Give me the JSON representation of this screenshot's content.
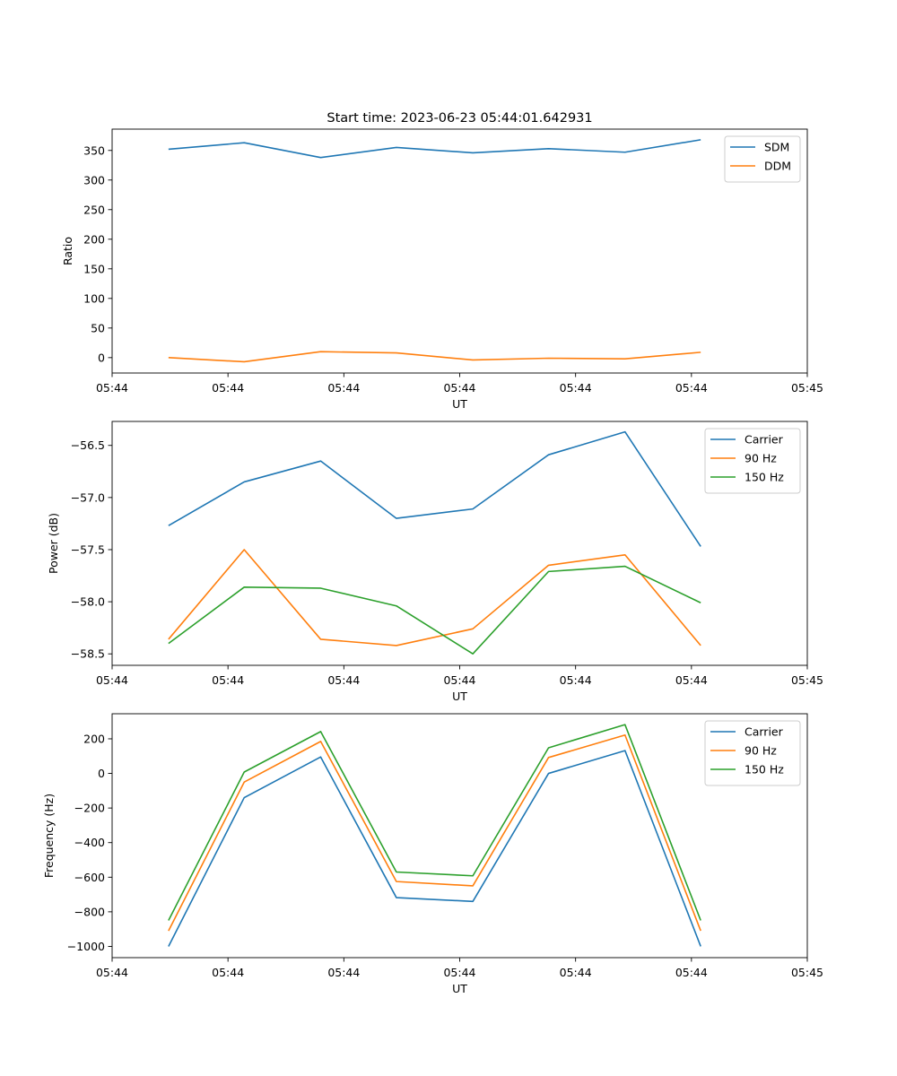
{
  "figure": {
    "title": "Start time: 2023-06-23 05:44:01.642931"
  },
  "chart_data": [
    {
      "type": "line",
      "xlabel": "UT",
      "ylabel": "Ratio",
      "xlim": [
        0,
        9
      ],
      "ylim": [
        -26,
        386
      ],
      "x_ticks": [
        {
          "value": 0,
          "label": "05:44"
        },
        {
          "value": 1.5,
          "label": "05:44"
        },
        {
          "value": 3,
          "label": "05:44"
        },
        {
          "value": 4.5,
          "label": "05:44"
        },
        {
          "value": 6,
          "label": "05:44"
        },
        {
          "value": 7.5,
          "label": "05:44"
        },
        {
          "value": 9,
          "label": "05:45"
        }
      ],
      "y_ticks": [
        {
          "value": 350,
          "label": "350"
        },
        {
          "value": 300,
          "label": "300"
        },
        {
          "value": 250,
          "label": "250"
        },
        {
          "value": 200,
          "label": "200"
        },
        {
          "value": 150,
          "label": "150"
        },
        {
          "value": 100,
          "label": "100"
        },
        {
          "value": 50,
          "label": "50"
        },
        {
          "value": 0,
          "label": "0"
        }
      ],
      "x": [
        0.73,
        1.71,
        2.7,
        3.68,
        4.67,
        5.65,
        6.64,
        7.62
      ],
      "series": [
        {
          "name": "SDM",
          "color": "#1f77b4",
          "values": [
            352,
            363,
            338,
            355,
            346,
            353,
            347,
            368
          ]
        },
        {
          "name": "DDM",
          "color": "#ff7f0e",
          "values": [
            0,
            -7,
            10,
            8,
            -4,
            -1,
            -2,
            9
          ]
        }
      ],
      "legend": "upper right"
    },
    {
      "type": "line",
      "xlabel": "UT",
      "ylabel": "Power (dB)",
      "xlim": [
        0,
        9
      ],
      "ylim": [
        -58.61,
        -56.27
      ],
      "x_ticks": [
        {
          "value": 0,
          "label": "05:44"
        },
        {
          "value": 1.5,
          "label": "05:44"
        },
        {
          "value": 3,
          "label": "05:44"
        },
        {
          "value": 4.5,
          "label": "05:44"
        },
        {
          "value": 6,
          "label": "05:44"
        },
        {
          "value": 7.5,
          "label": "05:44"
        },
        {
          "value": 9,
          "label": "05:45"
        }
      ],
      "y_ticks": [
        {
          "value": -56.5,
          "label": "−56.5"
        },
        {
          "value": -57.0,
          "label": "−57.0"
        },
        {
          "value": -57.5,
          "label": "−57.5"
        },
        {
          "value": -58.0,
          "label": "−58.0"
        },
        {
          "value": -58.5,
          "label": "−58.5"
        }
      ],
      "x": [
        0.73,
        1.71,
        2.7,
        3.68,
        4.67,
        5.65,
        6.64,
        7.62
      ],
      "series": [
        {
          "name": "Carrier",
          "color": "#1f77b4",
          "values": [
            -57.27,
            -56.85,
            -56.65,
            -57.2,
            -57.11,
            -56.59,
            -56.37,
            -57.47
          ]
        },
        {
          "name": "90 Hz",
          "color": "#ff7f0e",
          "values": [
            -58.36,
            -57.5,
            -58.36,
            -58.42,
            -58.26,
            -57.65,
            -57.55,
            -58.42
          ]
        },
        {
          "name": "150 Hz",
          "color": "#2ca02c",
          "values": [
            -58.4,
            -57.86,
            -57.87,
            -58.04,
            -58.5,
            -57.71,
            -57.66,
            -58.01
          ]
        }
      ],
      "legend": "upper right"
    },
    {
      "type": "line",
      "xlabel": "UT",
      "ylabel": "Frequency (Hz)",
      "xlim": [
        0,
        9
      ],
      "ylim": [
        -1065,
        345
      ],
      "x_ticks": [
        {
          "value": 0,
          "label": "05:44"
        },
        {
          "value": 1.5,
          "label": "05:44"
        },
        {
          "value": 3,
          "label": "05:44"
        },
        {
          "value": 4.5,
          "label": "05:44"
        },
        {
          "value": 6,
          "label": "05:44"
        },
        {
          "value": 7.5,
          "label": "05:44"
        },
        {
          "value": 9,
          "label": "05:45"
        }
      ],
      "y_ticks": [
        {
          "value": 200,
          "label": "200"
        },
        {
          "value": 0,
          "label": "0"
        },
        {
          "value": -200,
          "label": "−200"
        },
        {
          "value": -400,
          "label": "−400"
        },
        {
          "value": -600,
          "label": "−600"
        },
        {
          "value": -800,
          "label": "−800"
        },
        {
          "value": -1000,
          "label": "−1000"
        }
      ],
      "x": [
        0.73,
        1.71,
        2.7,
        3.68,
        4.67,
        5.65,
        6.64,
        7.62
      ],
      "series": [
        {
          "name": "Carrier",
          "color": "#1f77b4",
          "values": [
            -1000,
            -140,
            95,
            -718,
            -740,
            0,
            132,
            -1000
          ]
        },
        {
          "name": "90 Hz",
          "color": "#ff7f0e",
          "values": [
            -910,
            -50,
            185,
            -625,
            -650,
            92,
            222,
            -910
          ]
        },
        {
          "name": "150 Hz",
          "color": "#2ca02c",
          "values": [
            -850,
            8,
            242,
            -570,
            -592,
            148,
            282,
            -850
          ]
        }
      ],
      "legend": "upper right"
    }
  ]
}
